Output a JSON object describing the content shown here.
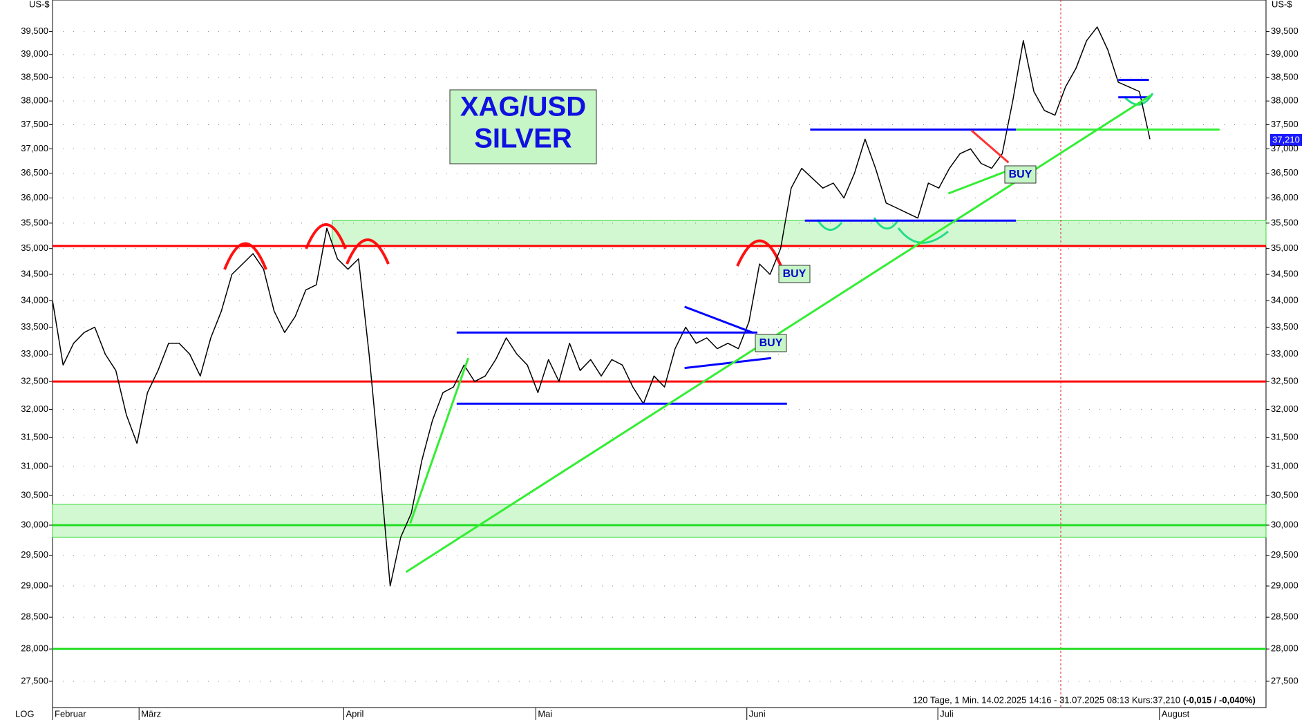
{
  "chart_data": {
    "type": "line",
    "log_scale": true,
    "grid": true,
    "title": "XAG/USD",
    "subtitle": "SILVER",
    "y_label": "US-$",
    "scale_label": "LOG",
    "info": "120 Tage, 1 Min. 14.02.2025 14:16 - 31.07.2025 08:13 Kurs:37,210",
    "change": "(-0,015 / -0,040%)",
    "last_label": "37,210",
    "annotations": [
      "BUY",
      "BUY",
      "BUY"
    ],
    "xlim": [
      0,
      115
    ],
    "xticks": [
      {
        "value": 0,
        "label": "Februar"
      },
      {
        "value": 8.2,
        "label": "März"
      },
      {
        "value": 27.6,
        "label": "April"
      },
      {
        "value": 45.8,
        "label": "Mai"
      },
      {
        "value": 65.8,
        "label": "Juni"
      },
      {
        "value": 83.9,
        "label": "Juli"
      },
      {
        "value": 104.9,
        "label": "August"
      }
    ],
    "ylim": [
      27100,
      40200
    ],
    "yticks": [
      {
        "value": 27500,
        "label": "27,500"
      },
      {
        "value": 28000,
        "label": "28,000"
      },
      {
        "value": 28500,
        "label": "28,500"
      },
      {
        "value": 29000,
        "label": "29,000"
      },
      {
        "value": 29500,
        "label": "29,500"
      },
      {
        "value": 30000,
        "label": "30,000"
      },
      {
        "value": 30500,
        "label": "30,500"
      },
      {
        "value": 31000,
        "label": "31,000"
      },
      {
        "value": 31500,
        "label": "31,500"
      },
      {
        "value": 32000,
        "label": "32,000"
      },
      {
        "value": 32500,
        "label": "32,500"
      },
      {
        "value": 33000,
        "label": "33,000"
      },
      {
        "value": 33500,
        "label": "33,500"
      },
      {
        "value": 34000,
        "label": "34,000"
      },
      {
        "value": 34500,
        "label": "34,500"
      },
      {
        "value": 35000,
        "label": "35,000"
      },
      {
        "value": 35500,
        "label": "35,500"
      },
      {
        "value": 36000,
        "label": "36,000"
      },
      {
        "value": 36500,
        "label": "36,500"
      },
      {
        "value": 37000,
        "label": "37,000"
      },
      {
        "value": 37500,
        "label": "37,500"
      },
      {
        "value": 38000,
        "label": "38,000"
      },
      {
        "value": 38500,
        "label": "38,500"
      },
      {
        "value": 39000,
        "label": "39,000"
      },
      {
        "value": 39500,
        "label": "39,500"
      }
    ],
    "series": [
      {
        "color": "#000000",
        "values": [
          34000,
          32800,
          33200,
          33400,
          33500,
          33000,
          32700,
          31900,
          31400,
          32300,
          32700,
          33200,
          33200,
          33000,
          32600,
          33300,
          33800,
          34500,
          34700,
          34900,
          34600,
          33800,
          33400,
          33700,
          34200,
          34300,
          35400,
          34800,
          34600,
          34800,
          33000,
          31000,
          29000,
          29800,
          30200,
          31100,
          31800,
          32300,
          32400,
          32800,
          32500,
          32600,
          32900,
          33300,
          33000,
          32800,
          32300,
          32900,
          32500,
          33200,
          32700,
          32900,
          32600,
          32900,
          32800,
          32400,
          32100,
          32600,
          32400,
          33100,
          33500,
          33200,
          33300,
          33100,
          33200,
          33100,
          33600,
          34700,
          34500,
          35000,
          36200,
          36600,
          36400,
          36200,
          36300,
          36000,
          36500,
          37200,
          36600,
          35900,
          35800,
          35700,
          35600,
          36300,
          36200,
          36600,
          36900,
          37000,
          36700,
          36600,
          36900,
          38000,
          39300,
          38200,
          37800,
          37700,
          38300,
          38700,
          39300,
          39600,
          39100,
          38400,
          38300,
          38200,
          37200
        ]
      }
    ],
    "zones": [
      {
        "color": "#33dd33",
        "from": 35050,
        "to": 35550,
        "start": 26.5
      },
      {
        "color": "#33dd33",
        "from": 29800,
        "to": 30350,
        "start": 0
      }
    ],
    "hlines": [
      {
        "color": "#ff0000",
        "value": 35050
      },
      {
        "color": "#ff0000",
        "value": 32500
      },
      {
        "color": "#22dd22",
        "value": 30000
      },
      {
        "color": "#22dd22",
        "value": 28000
      }
    ],
    "lines": [
      {
        "color": "#0000ff",
        "x": [
          71.8,
          91.8
        ],
        "y": [
          37400,
          37400
        ]
      },
      {
        "color": "#0000ff",
        "x": [
          71.3,
          91.3
        ],
        "y": [
          35550,
          35550
        ]
      },
      {
        "color": "#0000ff",
        "x": [
          38.3,
          66.8
        ],
        "y": [
          33400,
          33400
        ]
      },
      {
        "color": "#0000ff",
        "x": [
          38.3,
          69.6
        ],
        "y": [
          32100,
          32100
        ]
      },
      {
        "color": "#0000ff",
        "x": [
          59.9,
          66.4
        ],
        "y": [
          33883,
          33394
        ]
      },
      {
        "color": "#0000ff",
        "x": [
          59.9,
          68.1
        ],
        "y": [
          32745,
          32927
        ]
      },
      {
        "color": "#0000ff",
        "x": [
          101,
          103.9
        ],
        "y": [
          38450,
          38450
        ]
      },
      {
        "color": "#0000ff",
        "x": [
          101,
          103.9
        ],
        "y": [
          38080,
          38080
        ]
      },
      {
        "color": "#33ee33",
        "x": [
          91.3,
          110.6
        ],
        "y": [
          37400,
          37400
        ]
      },
      {
        "color": "#33ee33",
        "x": [
          33.5,
          104.1
        ],
        "y": [
          29226,
          38121
        ]
      },
      {
        "color": "#33ee33",
        "x": [
          33.9,
          39.4
        ],
        "y": [
          30030,
          32927
        ]
      },
      {
        "color": "#33ee33",
        "x": [
          84.9,
          90.5
        ],
        "y": [
          36091,
          36549
        ]
      },
      {
        "color": "#ff3333",
        "x": [
          87.1,
          90.6
        ],
        "y": [
          37379,
          36719
        ]
      }
    ]
  }
}
